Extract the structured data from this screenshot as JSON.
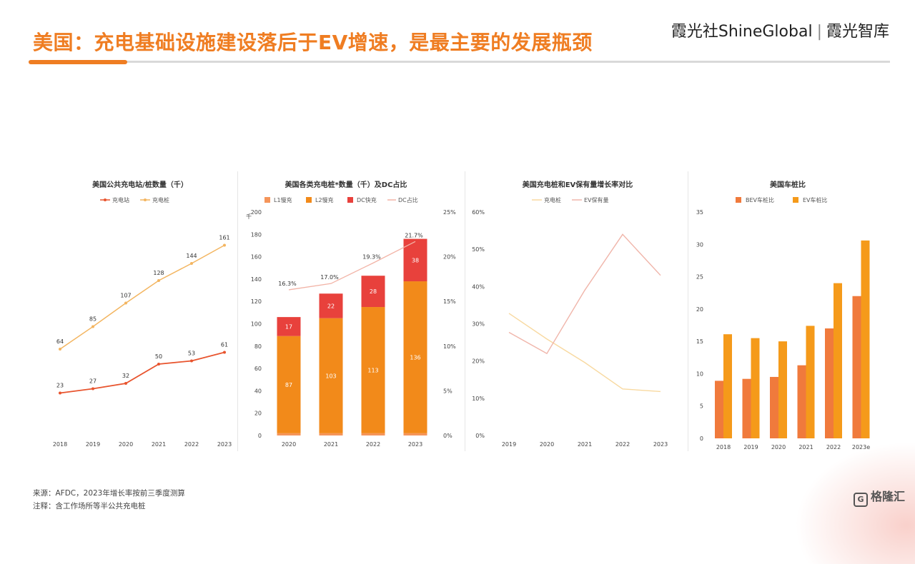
{
  "header": {
    "title": "美国：充电基础设施建设落后于EV增速，是最主要的发展瓶颈",
    "brand_cn": "霞光社",
    "brand_en": "ShineGlobal",
    "brand_right": "霞光智库"
  },
  "colors": {
    "accent": "#ef7d22",
    "red": "#e8413c",
    "peach": "#f4c5b0",
    "lightorange": "#f8c98a"
  },
  "chart_data": [
    {
      "type": "line",
      "title": "美国公共充电站/桩数量（千）",
      "categories": [
        "2018",
        "2019",
        "2020",
        "2021",
        "2022",
        "2023"
      ],
      "series": [
        {
          "name": "充电站",
          "values": [
            23,
            27,
            32,
            50,
            53,
            61
          ],
          "color": "#e8542e"
        },
        {
          "name": "充电桩",
          "values": [
            64,
            85,
            107,
            128,
            144,
            161
          ],
          "color": "#f3b560"
        }
      ],
      "ylim": [
        0,
        180
      ],
      "legend": "top-center"
    },
    {
      "type": "bar",
      "title": "美国各类充电桩*数量（千）及DC占比",
      "yunit": "千",
      "categories": [
        "2020",
        "2021",
        "2022",
        "2023"
      ],
      "series": [
        {
          "name": "L1慢充",
          "values": [
            2,
            2,
            2,
            2
          ],
          "color": "#f5955a"
        },
        {
          "name": "L2慢充",
          "values": [
            87,
            103,
            113,
            136
          ],
          "color": "#f28a1a"
        },
        {
          "name": "DC快充",
          "values": [
            17,
            22,
            28,
            38
          ],
          "color": "#e8413c"
        },
        {
          "name": "DC占比",
          "values": [
            16.3,
            17.0,
            19.3,
            21.7
          ],
          "color": "#f2b3a6",
          "axis": "right"
        }
      ],
      "dc_labels": [
        "16.3%",
        "17.0%",
        "19.3%",
        "21.7%"
      ],
      "ylim": [
        0,
        200
      ],
      "yticks": [
        0,
        20,
        40,
        60,
        80,
        100,
        120,
        140,
        160,
        180,
        200
      ],
      "y2lim": [
        0,
        25
      ],
      "y2ticks": [
        "0%",
        "5%",
        "10%",
        "15%",
        "20%",
        "25%"
      ],
      "legend": "top-center"
    },
    {
      "type": "line",
      "title": "美国充电桩和EV保有量增长率对比",
      "categories": [
        "2019",
        "2020",
        "2021",
        "2022",
        "2023"
      ],
      "series": [
        {
          "name": "充电桩",
          "values": [
            32.8,
            25.9,
            19.6,
            12.5,
            11.8
          ],
          "color": "#f8d9a0"
        },
        {
          "name": "EV保有量",
          "values": [
            27.7,
            22.0,
            39.0,
            54.0,
            43.0
          ],
          "color": "#f0b5aa"
        }
      ],
      "ylim": [
        0,
        60
      ],
      "yticks": [
        "0%",
        "10%",
        "20%",
        "30%",
        "40%",
        "50%",
        "60%"
      ],
      "legend": "top-center"
    },
    {
      "type": "bar",
      "title": "美国车桩比",
      "categories": [
        "2018",
        "2019",
        "2020",
        "2021",
        "2022",
        "2023e"
      ],
      "series": [
        {
          "name": "BEV车桩比",
          "values": [
            8.9,
            9.2,
            9.5,
            11.3,
            17.0,
            22.0
          ],
          "color": "#f07a3c"
        },
        {
          "name": "EV车桩比",
          "values": [
            16.1,
            15.5,
            15.0,
            17.4,
            24.0,
            30.6
          ],
          "color": "#f59a1a"
        }
      ],
      "ylim": [
        0,
        35
      ],
      "yticks": [
        0,
        5,
        10,
        15,
        20,
        25,
        30,
        35
      ],
      "legend": "top-center"
    }
  ],
  "footer": {
    "source": "来源：AFDC，2023年增长率按前三季度测算",
    "note": "注释：含工作场所等半公共充电桩"
  },
  "watermark": {
    "icon_letter": "G",
    "text": "格隆汇"
  }
}
